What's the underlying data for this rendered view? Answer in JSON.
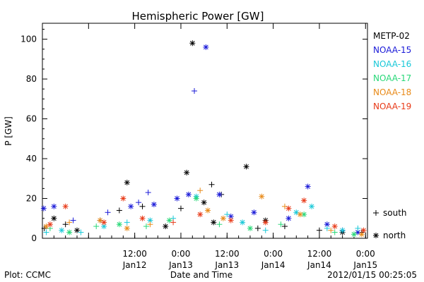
{
  "chart_data": {
    "type": "scatter",
    "title": "Hemispheric Power [GW]",
    "ylabel": "P [GW]",
    "xlabel": "Date and Time",
    "ylim": [
      0,
      108
    ],
    "yticks": [
      0,
      20,
      40,
      60,
      80,
      100
    ],
    "xlim": [
      "2012-01-11T12:00",
      "2012-01-15T00:30"
    ],
    "xticks": [
      {
        "t": "2012-01-12T00:00",
        "top": "",
        "bottom": ""
      },
      {
        "t": "2012-01-12T12:00",
        "top": "12:00",
        "bottom": "Jan12"
      },
      {
        "t": "2012-01-13T00:00",
        "top": "0:00",
        "bottom": "Jan13"
      },
      {
        "t": "2012-01-13T12:00",
        "top": "12:00",
        "bottom": "Jan13"
      },
      {
        "t": "2012-01-14T00:00",
        "top": "0:00",
        "bottom": "Jan14"
      },
      {
        "t": "2012-01-14T12:00",
        "top": "12:00",
        "bottom": "Jan14"
      },
      {
        "t": "2012-01-15T00:00",
        "top": "0:00",
        "bottom": "Jan15"
      }
    ],
    "grid": false,
    "legend_position": "right",
    "marker_legend": [
      {
        "marker": "+",
        "label": "south"
      },
      {
        "marker": "*",
        "label": "north"
      }
    ],
    "series": [
      {
        "name": "METP-02",
        "color": "#000000",
        "points": [
          [
            "2012-01-11T12:30",
            "+",
            5
          ],
          [
            "2012-01-11T15:00",
            "*",
            10
          ],
          [
            "2012-01-11T18:00",
            "+",
            7
          ],
          [
            "2012-01-11T21:00",
            "*",
            4
          ],
          [
            "2012-01-12T03:00",
            "+",
            9
          ],
          [
            "2012-01-12T08:00",
            "+",
            14
          ],
          [
            "2012-01-12T10:00",
            "*",
            28
          ],
          [
            "2012-01-12T14:00",
            "+",
            16
          ],
          [
            "2012-01-12T20:00",
            "*",
            6
          ],
          [
            "2012-01-13T00:00",
            "+",
            15
          ],
          [
            "2012-01-13T01:30",
            "*",
            33
          ],
          [
            "2012-01-13T03:00",
            "*",
            98
          ],
          [
            "2012-01-13T06:00",
            "*",
            18
          ],
          [
            "2012-01-13T08:00",
            "+",
            27
          ],
          [
            "2012-01-13T08:30",
            "*",
            8
          ],
          [
            "2012-01-13T10:30",
            "+",
            22
          ],
          [
            "2012-01-13T17:00",
            "*",
            36
          ],
          [
            "2012-01-13T20:00",
            "+",
            5
          ],
          [
            "2012-01-13T22:00",
            "*",
            9
          ],
          [
            "2012-01-14T03:00",
            "+",
            6
          ],
          [
            "2012-01-14T12:00",
            "+",
            4
          ],
          [
            "2012-01-14T18:00",
            "*",
            3
          ],
          [
            "2012-01-14T23:00",
            "+",
            3
          ]
        ]
      },
      {
        "name": "NOAA-15",
        "color": "#1a1ad8",
        "points": [
          [
            "2012-01-11T12:20",
            "*",
            15
          ],
          [
            "2012-01-11T15:00",
            "*",
            16
          ],
          [
            "2012-01-11T20:00",
            "+",
            9
          ],
          [
            "2012-01-12T05:00",
            "+",
            13
          ],
          [
            "2012-01-12T11:00",
            "*",
            16
          ],
          [
            "2012-01-12T13:00",
            "+",
            18
          ],
          [
            "2012-01-12T15:30",
            "+",
            23
          ],
          [
            "2012-01-12T17:00",
            "*",
            17
          ],
          [
            "2012-01-12T23:00",
            "*",
            20
          ],
          [
            "2012-01-13T02:00",
            "*",
            22
          ],
          [
            "2012-01-13T03:30",
            "+",
            74
          ],
          [
            "2012-01-13T06:30",
            "*",
            96
          ],
          [
            "2012-01-13T10:00",
            "*",
            22
          ],
          [
            "2012-01-13T13:00",
            "*",
            11
          ],
          [
            "2012-01-13T19:00",
            "*",
            13
          ],
          [
            "2012-01-14T04:00",
            "*",
            10
          ],
          [
            "2012-01-14T09:00",
            "*",
            26
          ],
          [
            "2012-01-14T14:00",
            "*",
            7
          ],
          [
            "2012-01-14T18:00",
            "+",
            4
          ],
          [
            "2012-01-14T22:00",
            "*",
            3
          ]
        ]
      },
      {
        "name": "NOAA-16",
        "color": "#18c8d8",
        "points": [
          [
            "2012-01-11T13:00",
            "+",
            3
          ],
          [
            "2012-01-11T17:00",
            "*",
            4
          ],
          [
            "2012-01-11T22:00",
            "+",
            3
          ],
          [
            "2012-01-12T04:00",
            "*",
            6
          ],
          [
            "2012-01-12T10:00",
            "+",
            8
          ],
          [
            "2012-01-12T16:00",
            "*",
            9
          ],
          [
            "2012-01-12T22:00",
            "+",
            10
          ],
          [
            "2012-01-13T04:00",
            "*",
            21
          ],
          [
            "2012-01-13T12:00",
            "+",
            12
          ],
          [
            "2012-01-13T16:00",
            "*",
            8
          ],
          [
            "2012-01-13T22:00",
            "+",
            4
          ],
          [
            "2012-01-14T06:00",
            "*",
            13
          ],
          [
            "2012-01-14T10:00",
            "*",
            16
          ],
          [
            "2012-01-14T14:00",
            "+",
            5
          ],
          [
            "2012-01-14T18:00",
            "*",
            4
          ],
          [
            "2012-01-14T22:00",
            "+",
            5
          ]
        ]
      },
      {
        "name": "NOAA-17",
        "color": "#28d878",
        "points": [
          [
            "2012-01-11T14:00",
            "+",
            5
          ],
          [
            "2012-01-11T19:00",
            "*",
            3
          ],
          [
            "2012-01-12T02:00",
            "+",
            6
          ],
          [
            "2012-01-12T08:00",
            "*",
            7
          ],
          [
            "2012-01-12T15:00",
            "+",
            6
          ],
          [
            "2012-01-12T21:00",
            "*",
            9
          ],
          [
            "2012-01-13T04:00",
            "*",
            20
          ],
          [
            "2012-01-13T10:00",
            "+",
            7
          ],
          [
            "2012-01-13T18:00",
            "*",
            5
          ],
          [
            "2012-01-14T02:00",
            "+",
            7
          ],
          [
            "2012-01-14T08:00",
            "*",
            12
          ],
          [
            "2012-01-14T16:00",
            "+",
            3
          ],
          [
            "2012-01-14T21:00",
            "*",
            2
          ]
        ]
      },
      {
        "name": "NOAA-18",
        "color": "#e88a18",
        "points": [
          [
            "2012-01-11T13:00",
            "*",
            6
          ],
          [
            "2012-01-11T19:00",
            "+",
            8
          ],
          [
            "2012-01-12T03:00",
            "*",
            9
          ],
          [
            "2012-01-12T10:00",
            "*",
            5
          ],
          [
            "2012-01-12T16:00",
            "+",
            7
          ],
          [
            "2012-01-13T05:00",
            "+",
            24
          ],
          [
            "2012-01-13T07:00",
            "*",
            14
          ],
          [
            "2012-01-13T11:00",
            "*",
            10
          ],
          [
            "2012-01-13T21:00",
            "*",
            21
          ],
          [
            "2012-01-14T03:00",
            "+",
            16
          ],
          [
            "2012-01-14T07:00",
            "*",
            12
          ],
          [
            "2012-01-14T15:00",
            "+",
            4
          ],
          [
            "2012-01-14T23:00",
            "*",
            2
          ]
        ]
      },
      {
        "name": "NOAA-19",
        "color": "#e83a18",
        "points": [
          [
            "2012-01-11T14:00",
            "*",
            7
          ],
          [
            "2012-01-11T18:00",
            "*",
            16
          ],
          [
            "2012-01-12T04:00",
            "*",
            8
          ],
          [
            "2012-01-12T09:00",
            "*",
            20
          ],
          [
            "2012-01-12T14:00",
            "*",
            10
          ],
          [
            "2012-01-12T22:00",
            "+",
            8
          ],
          [
            "2012-01-13T05:00",
            "*",
            12
          ],
          [
            "2012-01-13T13:00",
            "*",
            9
          ],
          [
            "2012-01-13T22:00",
            "*",
            8
          ],
          [
            "2012-01-14T04:00",
            "*",
            15
          ],
          [
            "2012-01-14T08:00",
            "*",
            19
          ],
          [
            "2012-01-14T16:00",
            "*",
            6
          ],
          [
            "2012-01-14T23:30",
            "*",
            4
          ]
        ]
      }
    ]
  },
  "footer": {
    "left": "Plot: CCMC",
    "right": "2012/01/15 00:25:05"
  }
}
